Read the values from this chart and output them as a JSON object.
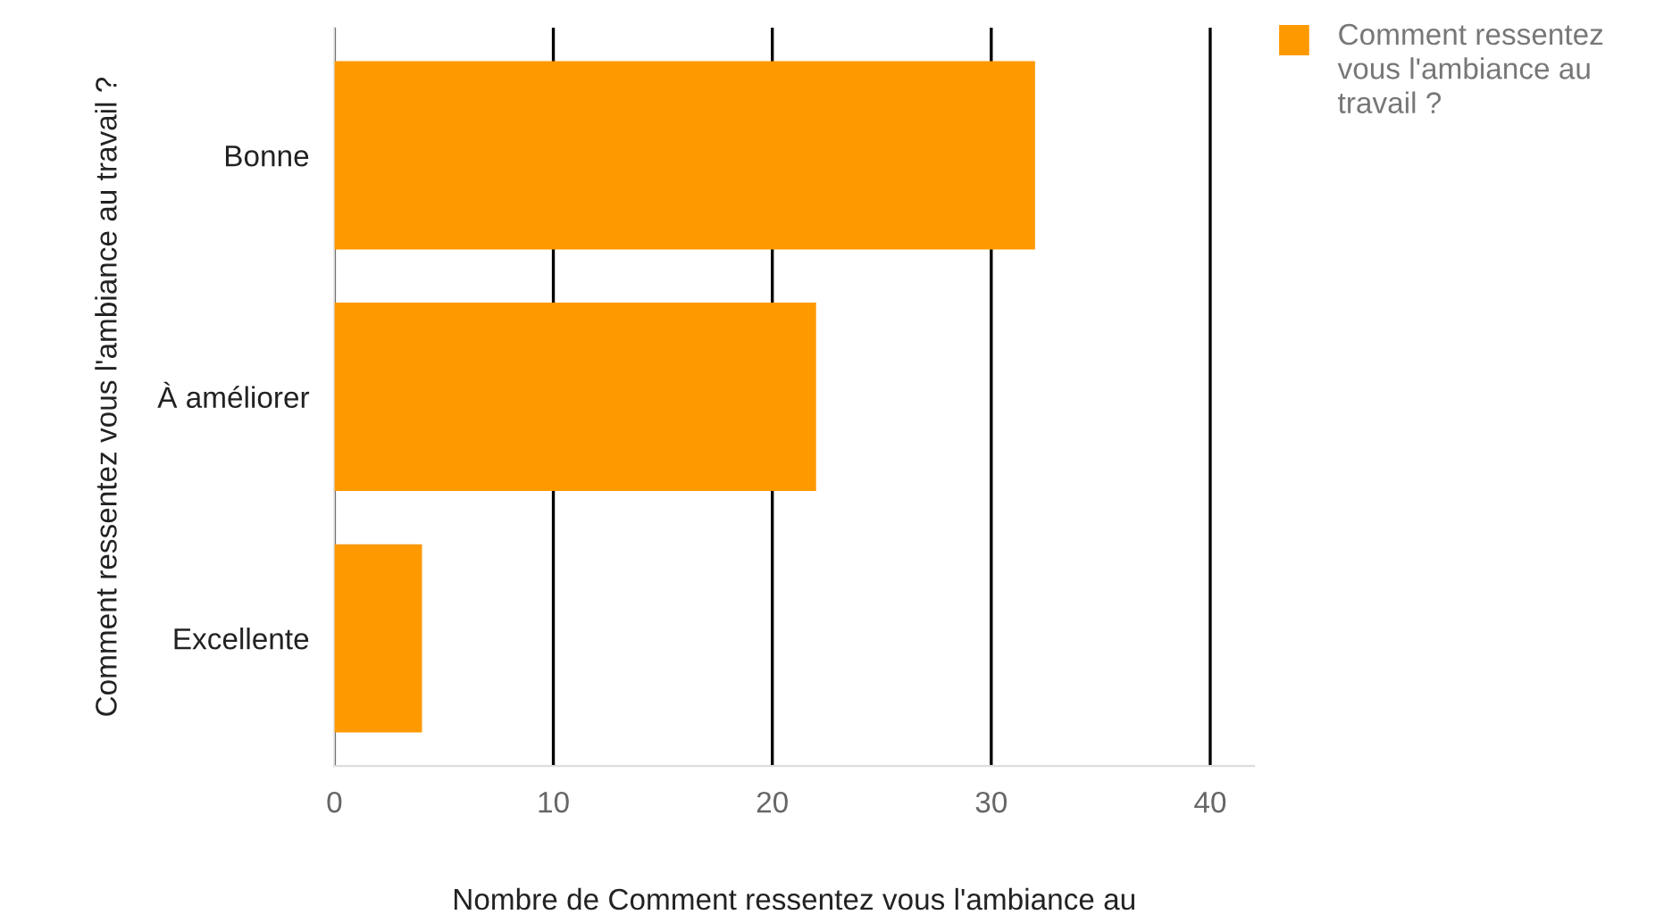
{
  "chart_data": {
    "type": "bar",
    "orientation": "horizontal",
    "categories": [
      "Bonne",
      "À améliorer",
      "Excellente"
    ],
    "series": [
      {
        "name": "Comment ressentez vous l'ambiance au travail ?",
        "color": "#ff9900",
        "values": [
          32,
          22,
          4
        ]
      }
    ],
    "xlim": [
      0,
      42
    ],
    "xticks": [
      0,
      10,
      20,
      30,
      40
    ],
    "grid": "x",
    "legend": "top right",
    "xlabel": "Nombre de Comment ressentez vous l'ambiance au",
    "ylabel": "Comment ressentez vous l'ambiance au travail ?"
  }
}
